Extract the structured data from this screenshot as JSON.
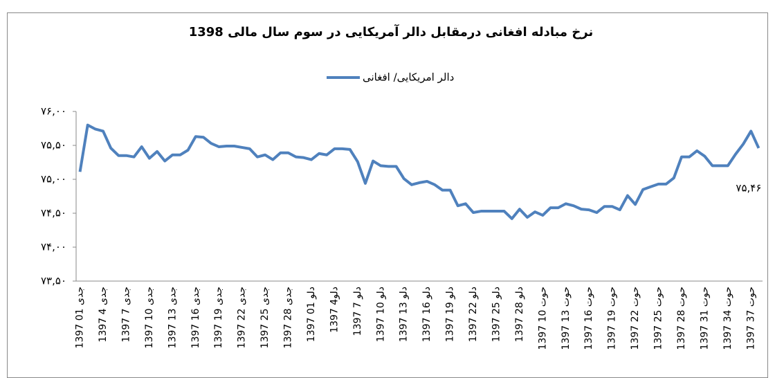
{
  "chart_data": {
    "type": "line",
    "title": "نرخ مبادله افغانی درمقابل دالر آمریکایی در سوم سال مالی 1398",
    "categories": [
      "1397 جدی 01",
      null,
      null,
      "1397 جدی 4",
      null,
      null,
      "1397 جدی 7",
      null,
      null,
      "1397 جدی 10",
      null,
      null,
      "1397 جدی 13",
      null,
      null,
      "1397 جدی 16",
      null,
      null,
      "1397 جدی 19",
      null,
      null,
      "1397 جدی 22",
      null,
      null,
      "1397 جدی 25",
      null,
      null,
      "1397 جدی 28",
      null,
      null,
      "1397 دلو 01",
      null,
      null,
      "1397 دلو4",
      null,
      null,
      "1397 دلو 7",
      null,
      null,
      "1397 دلو 10",
      null,
      null,
      "1397 دلو 13",
      null,
      null,
      "1397 دلو 16",
      null,
      null,
      "1397 دلو 19",
      null,
      null,
      "1397 دلو 22",
      null,
      null,
      "1397 دلو 25",
      null,
      null,
      "1397 دلو 28",
      null,
      null,
      "1397 حوت 10",
      null,
      null,
      "1397 حوت 13",
      null,
      null,
      "1397 حوت 16",
      null,
      null,
      "1397 حوت 19",
      null,
      null,
      "1397 حوت 22",
      null,
      null,
      "1397 حوت 25",
      null,
      null,
      "1397 حوت 28",
      null,
      null,
      "1397 حوت 31",
      null,
      null,
      "1397 حوت 34",
      null,
      null,
      "1397 حوت 37",
      null
    ],
    "series": [
      {
        "name": "دالر امریکایی/ افغانی",
        "color": "#4f81bd",
        "values": [
          75.11,
          75.8,
          75.74,
          75.71,
          75.46,
          75.35,
          75.35,
          75.33,
          75.48,
          75.31,
          75.41,
          75.27,
          75.36,
          75.36,
          75.43,
          75.63,
          75.62,
          75.53,
          75.48,
          75.49,
          75.49,
          75.47,
          75.45,
          75.33,
          75.36,
          75.29,
          75.39,
          75.39,
          75.33,
          75.32,
          75.29,
          75.38,
          75.36,
          75.45,
          75.45,
          75.44,
          75.26,
          74.94,
          75.27,
          75.2,
          75.19,
          75.19,
          75.01,
          74.92,
          74.95,
          74.97,
          74.92,
          74.84,
          74.84,
          74.61,
          74.64,
          74.51,
          74.53,
          74.53,
          74.53,
          74.53,
          74.42,
          74.56,
          74.44,
          74.52,
          74.47,
          74.58,
          74.58,
          74.64,
          74.61,
          74.56,
          74.55,
          74.51,
          74.6,
          74.6,
          74.55,
          74.76,
          74.63,
          74.85,
          74.89,
          74.93,
          74.93,
          75.02,
          75.33,
          75.33,
          75.42,
          75.34,
          75.2,
          75.2,
          75.2,
          75.37,
          75.52,
          75.71,
          75.46
        ],
        "value_labels": [
          null,
          null,
          null,
          null,
          null,
          null,
          null,
          null,
          null,
          null,
          null,
          null,
          null,
          null,
          null,
          null,
          null,
          null,
          null,
          null,
          null,
          null,
          null,
          null,
          null,
          null,
          null,
          null,
          null,
          null,
          null,
          null,
          null,
          null,
          null,
          null,
          null,
          null,
          null,
          null,
          null,
          null,
          null,
          null,
          null,
          null,
          null,
          null,
          null,
          null,
          null,
          null,
          null,
          null,
          null,
          null,
          null,
          null,
          null,
          null,
          null,
          null,
          null,
          null,
          null,
          null,
          null,
          null,
          null,
          null,
          null,
          null,
          null,
          null,
          null,
          null,
          null,
          null,
          null,
          null,
          null,
          null,
          null,
          null,
          null,
          null,
          null,
          null,
          "۷۵,۴۶"
        ]
      }
    ],
    "ylim": [
      73.5,
      76
    ],
    "yticks": [
      {
        "value": 73.5,
        "label": "۷۳,۵۰"
      },
      {
        "value": 74,
        "label": "۷۴,۰۰"
      },
      {
        "value": 74.5,
        "label": "۷۴,۵۰"
      },
      {
        "value": 75,
        "label": "۷۵,۰۰"
      },
      {
        "value": 75.5,
        "label": "۷۵,۵۰"
      },
      {
        "value": 76,
        "label": "۷۶,۰۰"
      }
    ],
    "grid": false,
    "legend": "top"
  }
}
